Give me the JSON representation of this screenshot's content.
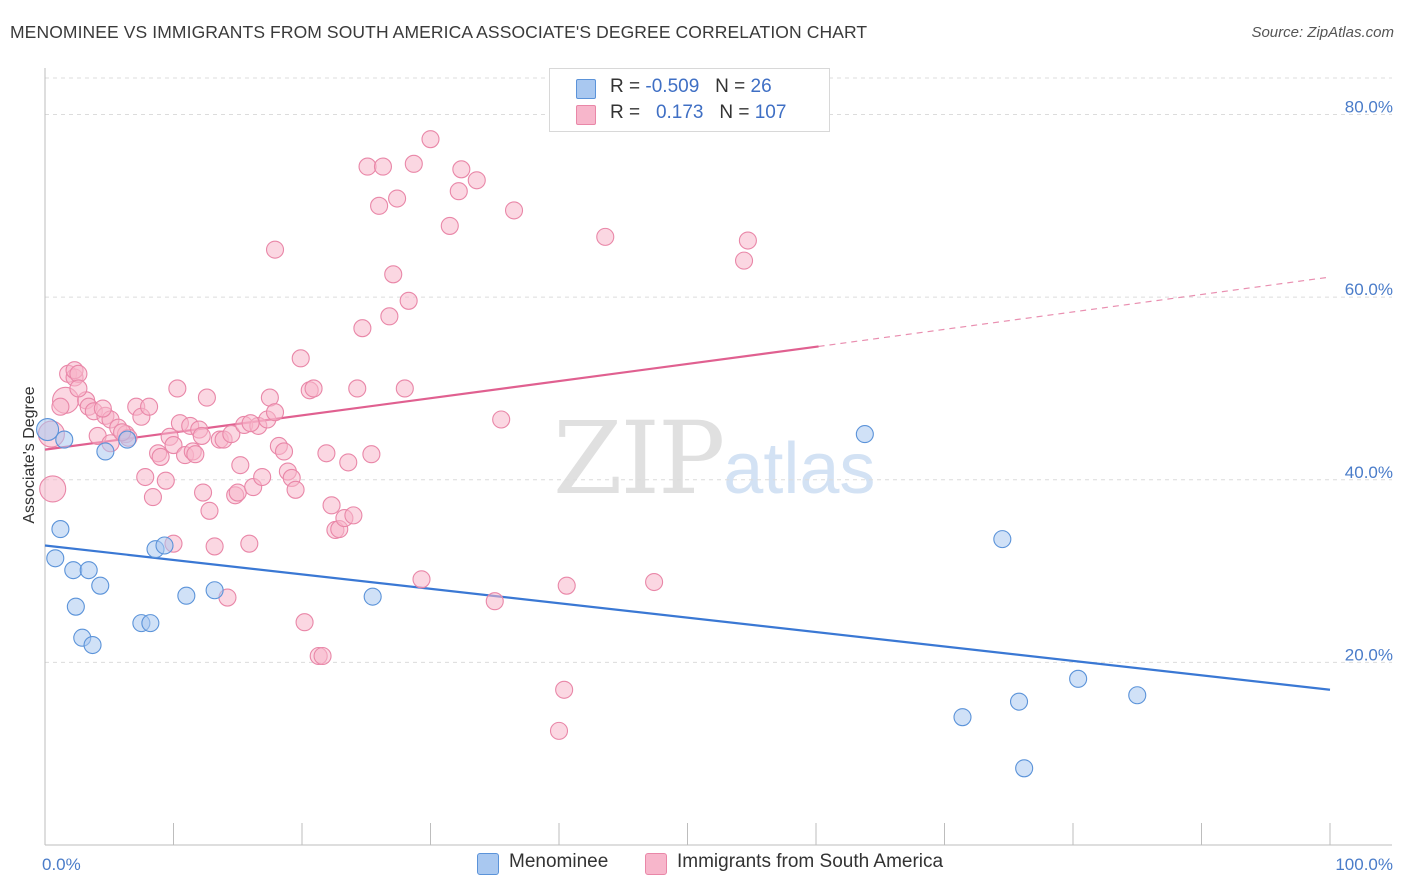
{
  "title": "MENOMINEE VS IMMIGRANTS FROM SOUTH AMERICA ASSOCIATE'S DEGREE CORRELATION CHART",
  "source": "Source: ZipAtlas.com",
  "watermark": {
    "zip": "ZIP",
    "atlas": "atlas"
  },
  "legend": {
    "rows": [
      {
        "r_label": "R =",
        "r_value": "-0.509",
        "n_label": "N =",
        "n_value": "26",
        "color": "#a9c8f0"
      },
      {
        "r_label": "R =",
        "r_value": "0.173",
        "n_label": "N =",
        "n_value": "107",
        "color": "#f7b6cb"
      }
    ]
  },
  "bottom_legend": [
    {
      "label": "Menominee",
      "color": "#a9c8f0"
    },
    {
      "label": "Immigrants from South America",
      "color": "#f7b6cb"
    }
  ],
  "chart_data": {
    "type": "scatter",
    "ylabel": "Associate's Degree",
    "xlim": [
      0,
      100
    ],
    "ylim": [
      0,
      84
    ],
    "x_tick_labels": [
      "0.0%",
      "100.0%"
    ],
    "y_ticks": [
      20,
      40,
      60,
      80
    ],
    "y_tick_labels": [
      "20.0%",
      "40.0%",
      "60.0%",
      "80.0%"
    ],
    "grid": true,
    "series": [
      {
        "name": "Menominee",
        "color": "#5b93d9",
        "fill": "#a9c8f0",
        "trend": {
          "x0": 0,
          "y0": 32.8,
          "x1": 100,
          "y1": 17.0,
          "color": "#3a78d4"
        },
        "points": [
          [
            0.2,
            45.5
          ],
          [
            1.5,
            44.4
          ],
          [
            0.8,
            31.4
          ],
          [
            1.2,
            34.6
          ],
          [
            2.2,
            30.1
          ],
          [
            3.4,
            30.1
          ],
          [
            2.4,
            26.1
          ],
          [
            4.3,
            28.4
          ],
          [
            2.9,
            22.7
          ],
          [
            3.7,
            21.9
          ],
          [
            4.7,
            43.1
          ],
          [
            6.4,
            44.4
          ],
          [
            7.5,
            24.3
          ],
          [
            8.2,
            24.3
          ],
          [
            8.6,
            32.4
          ],
          [
            9.3,
            32.8
          ],
          [
            11.0,
            27.3
          ],
          [
            13.2,
            27.9
          ],
          [
            25.5,
            27.2
          ],
          [
            63.8,
            45.0
          ],
          [
            74.5,
            33.5
          ],
          [
            71.4,
            14.0
          ],
          [
            75.8,
            15.7
          ],
          [
            80.4,
            18.2
          ],
          [
            85.0,
            16.4
          ],
          [
            76.2,
            8.4
          ]
        ]
      },
      {
        "name": "Immigrants from South America",
        "color": "#e987a8",
        "fill": "#f7b6cb",
        "trend": {
          "x0": 0,
          "y0": 43.3,
          "x1": 60.2,
          "y1": 54.6,
          "color": "#e06090"
        },
        "trend_dashed": {
          "x0": 60.2,
          "y0": 54.6,
          "x1": 100,
          "y1": 62.2
        },
        "points": [
          [
            0.5,
            45.0
          ],
          [
            0.6,
            39.0
          ],
          [
            1.6,
            48.7
          ],
          [
            1.8,
            51.6
          ],
          [
            2.3,
            51.2
          ],
          [
            2.3,
            52.0
          ],
          [
            2.6,
            51.6
          ],
          [
            3.2,
            48.7
          ],
          [
            2.6,
            50.0
          ],
          [
            3.4,
            48.0
          ],
          [
            3.8,
            47.5
          ],
          [
            4.1,
            44.8
          ],
          [
            4.7,
            47.0
          ],
          [
            5.1,
            46.6
          ],
          [
            5.7,
            45.7
          ],
          [
            6.3,
            45.0
          ],
          [
            6.5,
            44.6
          ],
          [
            5.1,
            44.0
          ],
          [
            7.1,
            48.0
          ],
          [
            7.5,
            46.9
          ],
          [
            8.1,
            48.0
          ],
          [
            7.8,
            40.3
          ],
          [
            8.4,
            38.1
          ],
          [
            8.8,
            42.9
          ],
          [
            9.4,
            39.9
          ],
          [
            9.7,
            44.7
          ],
          [
            10.0,
            33.0
          ],
          [
            10.0,
            43.8
          ],
          [
            10.3,
            50.0
          ],
          [
            10.5,
            46.2
          ],
          [
            10.9,
            42.7
          ],
          [
            11.3,
            45.9
          ],
          [
            11.5,
            43.1
          ],
          [
            11.7,
            42.8
          ],
          [
            12.0,
            45.5
          ],
          [
            12.3,
            38.6
          ],
          [
            12.6,
            49.0
          ],
          [
            12.8,
            36.6
          ],
          [
            13.2,
            32.7
          ],
          [
            13.6,
            44.4
          ],
          [
            13.9,
            44.4
          ],
          [
            14.2,
            27.1
          ],
          [
            14.5,
            45.0
          ],
          [
            14.8,
            38.3
          ],
          [
            15.0,
            38.6
          ],
          [
            15.2,
            41.6
          ],
          [
            15.5,
            46.0
          ],
          [
            15.9,
            33.0
          ],
          [
            16.2,
            39.2
          ],
          [
            16.6,
            45.9
          ],
          [
            16.9,
            40.3
          ],
          [
            17.3,
            46.6
          ],
          [
            17.5,
            49.0
          ],
          [
            17.9,
            47.4
          ],
          [
            18.2,
            43.7
          ],
          [
            18.6,
            43.1
          ],
          [
            18.9,
            40.9
          ],
          [
            19.2,
            40.2
          ],
          [
            19.5,
            38.9
          ],
          [
            19.9,
            53.3
          ],
          [
            20.2,
            24.4
          ],
          [
            20.6,
            49.8
          ],
          [
            20.9,
            50.0
          ],
          [
            21.3,
            20.7
          ],
          [
            21.6,
            20.7
          ],
          [
            21.9,
            42.9
          ],
          [
            22.3,
            37.2
          ],
          [
            22.6,
            34.5
          ],
          [
            22.9,
            34.6
          ],
          [
            23.3,
            35.8
          ],
          [
            23.6,
            41.9
          ],
          [
            24.0,
            36.1
          ],
          [
            24.3,
            50.0
          ],
          [
            24.7,
            56.6
          ],
          [
            25.1,
            74.3
          ],
          [
            25.4,
            42.8
          ],
          [
            26.0,
            70.0
          ],
          [
            26.3,
            74.3
          ],
          [
            26.8,
            57.9
          ],
          [
            27.1,
            62.5
          ],
          [
            27.4,
            70.8
          ],
          [
            28.0,
            50.0
          ],
          [
            28.3,
            59.6
          ],
          [
            28.7,
            74.6
          ],
          [
            29.3,
            29.1
          ],
          [
            30.0,
            77.3
          ],
          [
            17.9,
            65.2
          ],
          [
            31.5,
            67.8
          ],
          [
            32.2,
            71.6
          ],
          [
            32.4,
            74.0
          ],
          [
            33.6,
            72.8
          ],
          [
            35.0,
            26.7
          ],
          [
            35.5,
            46.6
          ],
          [
            36.5,
            69.5
          ],
          [
            40.0,
            12.5
          ],
          [
            40.4,
            17.0
          ],
          [
            40.6,
            28.4
          ],
          [
            43.6,
            66.6
          ],
          [
            47.4,
            28.8
          ],
          [
            54.4,
            64.0
          ],
          [
            54.7,
            66.2
          ],
          [
            1.2,
            48.0
          ],
          [
            4.5,
            47.8
          ],
          [
            6.0,
            45.2
          ],
          [
            9.0,
            42.5
          ],
          [
            16.0,
            46.2
          ],
          [
            12.2,
            44.8
          ]
        ]
      }
    ]
  }
}
